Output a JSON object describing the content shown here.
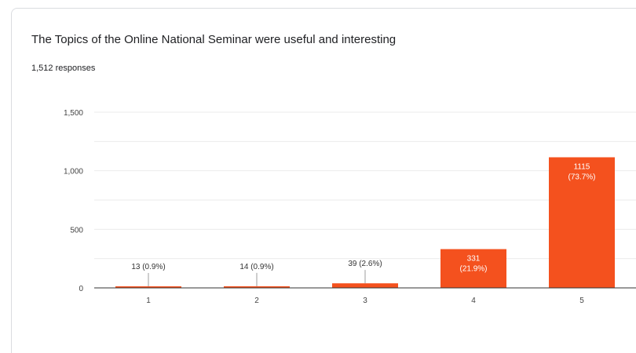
{
  "question": "The Topics of the Online National Seminar were useful and interesting",
  "responses_label": "1,512 responses",
  "colors": {
    "bar": "#f4511e",
    "grid": "#ebebeb",
    "axis": "#333333",
    "label_outside": "#333333",
    "label_inside": "#ffffff"
  },
  "chart_data": {
    "type": "bar",
    "title": "The Topics of the Online National Seminar were useful and interesting",
    "subtitle": "1,512 responses",
    "categories": [
      "1",
      "2",
      "3",
      "4",
      "5"
    ],
    "values": [
      13,
      14,
      39,
      331,
      1115
    ],
    "data_labels": [
      "13 (0.9%)",
      "14 (0.9%)",
      "39 (2.6%)",
      "331 (21.9%)",
      "1115 (73.7%)"
    ],
    "ylim": [
      0,
      1500
    ],
    "yticks": [
      0,
      500,
      1000,
      1500
    ],
    "ytick_labels": [
      "0",
      "500",
      "1,000",
      "1,500"
    ],
    "xlabel": "",
    "ylabel": "",
    "grid": true
  }
}
